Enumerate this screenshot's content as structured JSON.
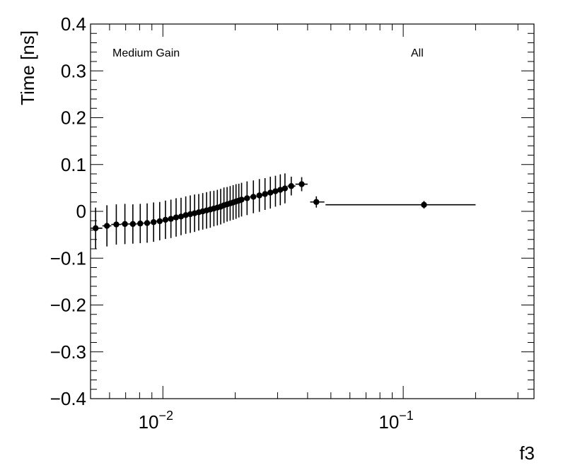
{
  "chart_data": {
    "type": "scatter",
    "title": "",
    "xlabel": "f3",
    "ylabel": "Time [ns]",
    "xscale": "log",
    "xlim": [
      0.005,
      0.35
    ],
    "ylim": [
      -0.4,
      0.4
    ],
    "grid": false,
    "colors": {
      "marker": "#000000",
      "axis": "#000000",
      "background": "#ffffff"
    },
    "annotations": [
      {
        "id": "gain",
        "text": "Medium Gain"
      },
      {
        "id": "all",
        "text": "All"
      }
    ],
    "y_ticks": [
      {
        "value": -0.4,
        "label": "−0.4"
      },
      {
        "value": -0.3,
        "label": "−0.3"
      },
      {
        "value": -0.2,
        "label": "−0.2"
      },
      {
        "value": -0.1,
        "label": "−0.1"
      },
      {
        "value": 0,
        "label": "0"
      },
      {
        "value": 0.1,
        "label": "0.1"
      },
      {
        "value": 0.2,
        "label": "0.2"
      },
      {
        "value": 0.3,
        "label": "0.3"
      },
      {
        "value": 0.4,
        "label": "0.4"
      }
    ],
    "x_ticks": [
      {
        "value": 0.01,
        "base": "10",
        "exponent": "−2"
      },
      {
        "value": 0.1,
        "base": "10",
        "exponent": "−1"
      }
    ],
    "points": [
      {
        "x": 0.00525,
        "y": -0.036,
        "yerr": 0.044,
        "xlo": 0.005,
        "xhi": 0.0056
      },
      {
        "x": 0.00585,
        "y": -0.031,
        "yerr": 0.044,
        "xlo": 0.0056,
        "xhi": 0.0061
      },
      {
        "x": 0.0064,
        "y": -0.028,
        "yerr": 0.043,
        "xlo": 0.0061,
        "xhi": 0.0067
      },
      {
        "x": 0.00695,
        "y": -0.027,
        "yerr": 0.043,
        "xlo": 0.0067,
        "xhi": 0.0072
      },
      {
        "x": 0.0075,
        "y": -0.027,
        "yerr": 0.042,
        "xlo": 0.0072,
        "xhi": 0.0078
      },
      {
        "x": 0.00805,
        "y": -0.026,
        "yerr": 0.042,
        "xlo": 0.0078,
        "xhi": 0.0083
      },
      {
        "x": 0.0086,
        "y": -0.025,
        "yerr": 0.042,
        "xlo": 0.0083,
        "xhi": 0.0089
      },
      {
        "x": 0.00915,
        "y": -0.023,
        "yerr": 0.042,
        "xlo": 0.0089,
        "xhi": 0.0094
      },
      {
        "x": 0.0097,
        "y": -0.021,
        "yerr": 0.041,
        "xlo": 0.0094,
        "xhi": 0.01
      },
      {
        "x": 0.01025,
        "y": -0.018,
        "yerr": 0.041,
        "xlo": 0.01,
        "xhi": 0.0105
      },
      {
        "x": 0.0108,
        "y": -0.016,
        "yerr": 0.041,
        "xlo": 0.0105,
        "xhi": 0.0111
      },
      {
        "x": 0.01135,
        "y": -0.013,
        "yerr": 0.041,
        "xlo": 0.0111,
        "xhi": 0.0116
      },
      {
        "x": 0.0119,
        "y": -0.011,
        "yerr": 0.04,
        "xlo": 0.0116,
        "xhi": 0.0122
      },
      {
        "x": 0.01245,
        "y": -0.008,
        "yerr": 0.04,
        "xlo": 0.0122,
        "xhi": 0.0127
      },
      {
        "x": 0.013,
        "y": -0.006,
        "yerr": 0.04,
        "xlo": 0.0127,
        "xhi": 0.0133
      },
      {
        "x": 0.01355,
        "y": -0.004,
        "yerr": 0.04,
        "xlo": 0.0133,
        "xhi": 0.0138
      },
      {
        "x": 0.0141,
        "y": -0.002,
        "yerr": 0.039,
        "xlo": 0.0138,
        "xhi": 0.0144
      },
      {
        "x": 0.01465,
        "y": 0.0,
        "yerr": 0.039,
        "xlo": 0.0144,
        "xhi": 0.0149
      },
      {
        "x": 0.0152,
        "y": 0.002,
        "yerr": 0.039,
        "xlo": 0.0149,
        "xhi": 0.0155
      },
      {
        "x": 0.01575,
        "y": 0.004,
        "yerr": 0.039,
        "xlo": 0.0155,
        "xhi": 0.016
      },
      {
        "x": 0.0163,
        "y": 0.006,
        "yerr": 0.038,
        "xlo": 0.016,
        "xhi": 0.0166
      },
      {
        "x": 0.01685,
        "y": 0.008,
        "yerr": 0.038,
        "xlo": 0.0166,
        "xhi": 0.0171
      },
      {
        "x": 0.0174,
        "y": 0.01,
        "yerr": 0.038,
        "xlo": 0.0171,
        "xhi": 0.0177
      },
      {
        "x": 0.01795,
        "y": 0.013,
        "yerr": 0.038,
        "xlo": 0.0177,
        "xhi": 0.0182
      },
      {
        "x": 0.0185,
        "y": 0.015,
        "yerr": 0.037,
        "xlo": 0.0182,
        "xhi": 0.0188
      },
      {
        "x": 0.01905,
        "y": 0.017,
        "yerr": 0.037,
        "xlo": 0.0188,
        "xhi": 0.0193
      },
      {
        "x": 0.0196,
        "y": 0.019,
        "yerr": 0.037,
        "xlo": 0.0193,
        "xhi": 0.0199
      },
      {
        "x": 0.02015,
        "y": 0.021,
        "yerr": 0.037,
        "xlo": 0.0199,
        "xhi": 0.0204
      },
      {
        "x": 0.0207,
        "y": 0.023,
        "yerr": 0.036,
        "xlo": 0.0204,
        "xhi": 0.021
      },
      {
        "x": 0.02125,
        "y": 0.025,
        "yerr": 0.036,
        "xlo": 0.021,
        "xhi": 0.0215
      },
      {
        "x": 0.0224,
        "y": 0.028,
        "yerr": 0.036,
        "xlo": 0.0215,
        "xhi": 0.023
      },
      {
        "x": 0.0238,
        "y": 0.031,
        "yerr": 0.035,
        "xlo": 0.023,
        "xhi": 0.0245
      },
      {
        "x": 0.0252,
        "y": 0.034,
        "yerr": 0.035,
        "xlo": 0.0245,
        "xhi": 0.026
      },
      {
        "x": 0.0266,
        "y": 0.037,
        "yerr": 0.034,
        "xlo": 0.026,
        "xhi": 0.0273
      },
      {
        "x": 0.028,
        "y": 0.04,
        "yerr": 0.034,
        "xlo": 0.0273,
        "xhi": 0.0287
      },
      {
        "x": 0.0294,
        "y": 0.043,
        "yerr": 0.033,
        "xlo": 0.0287,
        "xhi": 0.0301
      },
      {
        "x": 0.0308,
        "y": 0.046,
        "yerr": 0.033,
        "xlo": 0.0301,
        "xhi": 0.0315
      },
      {
        "x": 0.0322,
        "y": 0.049,
        "yerr": 0.032,
        "xlo": 0.0315,
        "xhi": 0.033
      },
      {
        "x": 0.0342,
        "y": 0.054,
        "yerr": 0.02,
        "xlo": 0.033,
        "xhi": 0.0356
      },
      {
        "x": 0.0378,
        "y": 0.058,
        "yerr": 0.015,
        "xlo": 0.0356,
        "xhi": 0.04
      },
      {
        "x": 0.0435,
        "y": 0.02,
        "yerr": 0.012,
        "xlo": 0.041,
        "xhi": 0.047
      },
      {
        "x": 0.122,
        "y": 0.014,
        "yerr": 0.008,
        "xlo": 0.0475,
        "xhi": 0.2
      }
    ]
  }
}
